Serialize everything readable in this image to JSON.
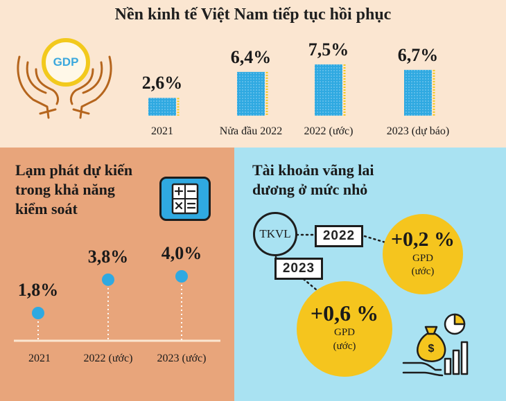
{
  "title": "Nền kinh tế Việt Nam tiếp tục hồi phục",
  "gdp_badge": "GDP",
  "colors": {
    "top_bg": "#fbe6d1",
    "left_bg": "#e8a57b",
    "right_bg": "#a9e2f2",
    "bar_blue": "#2fa9e1",
    "gold": "#f5c51e"
  },
  "chart_data": [
    {
      "type": "bar",
      "categories": [
        "2021",
        "Nửa đầu 2022",
        "2022 (ước)",
        "2023 (dự báo)"
      ],
      "values": [
        2.6,
        6.4,
        7.5,
        6.7
      ],
      "value_labels": [
        "2,6%",
        "6,4%",
        "7,5%",
        "6,7%"
      ],
      "ylim": [
        0,
        7.5
      ]
    },
    {
      "type": "scatter",
      "title": "Lạm phát dự kiến trong khả năng kiểm soát",
      "categories": [
        "2021",
        "2022 (ước)",
        "2023 (ước)"
      ],
      "values": [
        1.8,
        3.8,
        4.0
      ],
      "value_labels": [
        "1,8%",
        "3,8%",
        "4,0%"
      ],
      "ylim": [
        0,
        4.0
      ]
    }
  ],
  "inflation": {
    "title_lines": [
      "Lạm phát dự kiến",
      "trong khả năng",
      "kiểm soát"
    ]
  },
  "current_account": {
    "title_lines": [
      "Tài khoản vãng lai",
      "dương ở mức nhỏ"
    ],
    "center_label": "TKVL",
    "items": [
      {
        "year": "2022",
        "value": "+0,2 %",
        "unit": "GPD",
        "note": "(ước)"
      },
      {
        "year": "2023",
        "value": "+0,6 %",
        "unit": "GPD",
        "note": "(ước)"
      }
    ]
  },
  "icons": [
    "gdp-hands-icon",
    "calculator-icon",
    "money-bag-growth-icon"
  ]
}
